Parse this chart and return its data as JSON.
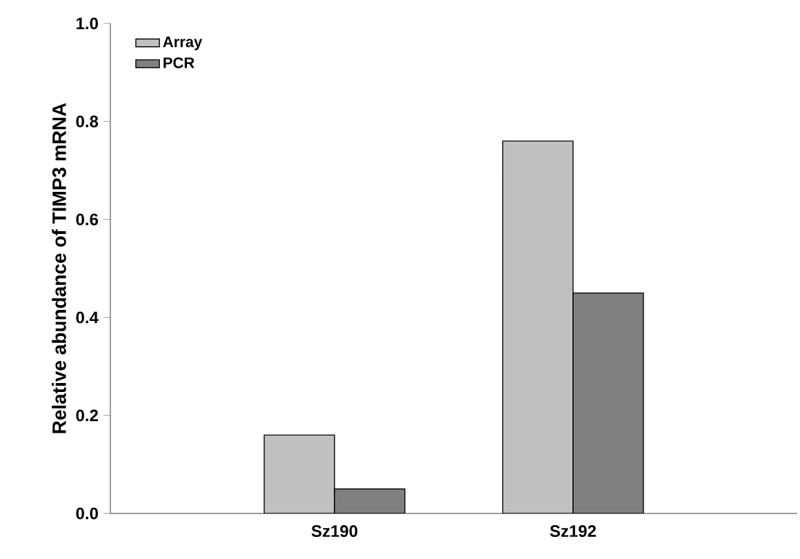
{
  "chart_data": {
    "type": "bar",
    "ylabel": "Relative abundance of TIMP3 mRNA",
    "categories": [
      "Sz190",
      "Sz192"
    ],
    "series": [
      {
        "name": "Array",
        "color": "#c0c0c0",
        "values": [
          0.16,
          0.76
        ]
      },
      {
        "name": "PCR",
        "color": "#808080",
        "values": [
          0.05,
          0.45
        ]
      }
    ],
    "ylim": [
      0,
      1.0
    ],
    "yticks": [
      {
        "value": 0,
        "label": "0.0"
      },
      {
        "value": 0.2,
        "label": "0.2"
      },
      {
        "value": 0.4,
        "label": "0.4"
      },
      {
        "value": 0.6,
        "label": "0.6"
      },
      {
        "value": 0.8,
        "label": "0.8"
      },
      {
        "value": 1.0,
        "label": "1.0"
      }
    ],
    "grid": false,
    "legend": "top left"
  }
}
